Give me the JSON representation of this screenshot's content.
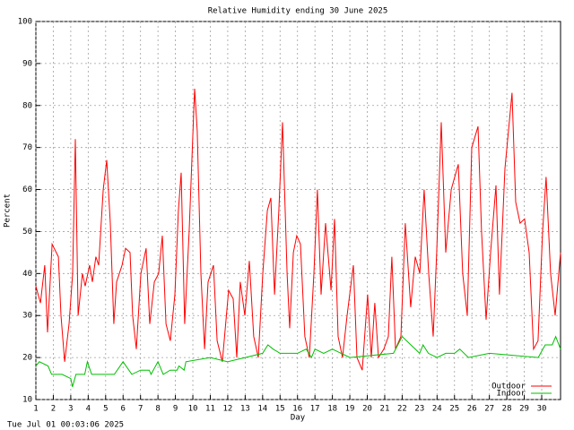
{
  "chart_data": {
    "type": "line",
    "title": "Relative Humidity ending 30 June 2025",
    "xlabel": "Day",
    "ylabel": "Percent",
    "footer": "Tue Jul 01 00:03:06 2025",
    "xlim": [
      1,
      31.08
    ],
    "ylim": [
      10,
      100
    ],
    "xticks": [
      1,
      2,
      3,
      4,
      5,
      6,
      7,
      8,
      9,
      10,
      11,
      12,
      13,
      14,
      15,
      16,
      17,
      18,
      19,
      20,
      21,
      22,
      23,
      24,
      25,
      26,
      27,
      28,
      29,
      30
    ],
    "yticks": [
      10,
      20,
      30,
      40,
      50,
      60,
      70,
      80,
      90,
      100
    ],
    "grid": true,
    "legend": "lower right",
    "series": [
      {
        "name": "Outdoor",
        "color": "#ff0000",
        "x": [
          1.0,
          1.26,
          1.51,
          1.67,
          1.93,
          2.29,
          2.44,
          2.65,
          2.9,
          3.11,
          3.26,
          3.42,
          3.67,
          3.83,
          4.08,
          4.24,
          4.44,
          4.6,
          4.86,
          5.06,
          5.27,
          5.47,
          5.63,
          5.94,
          6.14,
          6.4,
          6.55,
          6.76,
          7.02,
          7.32,
          7.53,
          7.79,
          8.04,
          8.25,
          8.46,
          8.71,
          8.97,
          9.17,
          9.33,
          9.53,
          9.79,
          10.1,
          10.25,
          10.46,
          10.67,
          10.87,
          11.18,
          11.39,
          11.69,
          12.05,
          12.31,
          12.52,
          12.72,
          12.98,
          13.24,
          13.49,
          13.75,
          14.01,
          14.27,
          14.47,
          14.68,
          14.93,
          15.14,
          15.4,
          15.55,
          15.76,
          15.96,
          16.17,
          16.42,
          16.68,
          16.94,
          17.14,
          17.35,
          17.61,
          17.92,
          18.12,
          18.33,
          18.58,
          18.84,
          19.2,
          19.41,
          19.71,
          20.02,
          20.23,
          20.43,
          20.64,
          20.95,
          21.21,
          21.41,
          21.62,
          21.93,
          22.18,
          22.49,
          22.75,
          23.01,
          23.26,
          23.52,
          23.78,
          23.98,
          24.24,
          24.5,
          24.81,
          25.22,
          25.47,
          25.73,
          25.99,
          26.35,
          26.55,
          26.81,
          27.07,
          27.38,
          27.58,
          27.89,
          28.3,
          28.51,
          28.76,
          29.02,
          29.28,
          29.53,
          29.79,
          30.05,
          30.25,
          30.51,
          30.77,
          31.08
        ],
        "values": [
          37,
          33,
          42,
          26,
          47,
          44,
          30,
          19,
          28,
          40,
          72,
          30,
          40,
          37,
          42,
          38,
          44,
          42,
          60,
          67,
          52,
          28,
          38,
          42,
          46,
          45,
          30,
          22,
          40,
          46,
          28,
          38,
          40,
          49,
          28,
          24,
          35,
          55,
          64,
          28,
          50,
          84,
          74,
          40,
          22,
          38,
          42,
          24,
          19,
          36,
          34,
          20,
          38,
          30,
          43,
          25,
          20,
          40,
          55,
          58,
          35,
          55,
          76,
          40,
          27,
          45,
          49,
          47,
          25,
          20,
          40,
          60,
          35,
          52,
          36,
          53,
          25,
          20,
          30,
          42,
          20,
          17,
          35,
          20,
          33,
          20,
          22,
          25,
          44,
          22,
          25,
          52,
          32,
          44,
          40,
          60,
          40,
          25,
          45,
          76,
          45,
          60,
          66,
          40,
          30,
          70,
          75,
          50,
          29,
          45,
          61,
          35,
          65,
          83,
          57,
          52,
          53,
          45,
          22,
          24,
          50,
          63,
          40,
          30,
          45
        ]
      },
      {
        "name": "Indoor",
        "color": "#00c000",
        "x": [
          1.0,
          1.2,
          1.7,
          1.9,
          2.5,
          3.0,
          3.1,
          3.3,
          3.8,
          3.95,
          4.2,
          5.5,
          6.0,
          6.5,
          7.0,
          7.5,
          7.6,
          8.0,
          8.3,
          8.7,
          9.1,
          9.2,
          9.5,
          9.6,
          11.0,
          12.0,
          13.0,
          14.0,
          14.3,
          14.6,
          15.0,
          16.0,
          16.5,
          16.8,
          17.0,
          17.5,
          18.0,
          18.5,
          19.0,
          21.5,
          22.0,
          22.5,
          23.0,
          23.2,
          23.5,
          24.0,
          24.5,
          25.0,
          25.3,
          25.8,
          27.0,
          29.8,
          30.2,
          30.6,
          30.8,
          31.08
        ],
        "values": [
          18,
          19,
          18,
          16,
          16,
          15,
          13,
          16,
          16,
          19,
          16,
          16,
          19,
          16,
          17,
          17,
          16,
          19,
          16,
          17,
          17,
          18,
          17,
          19,
          20,
          19,
          20,
          21,
          23,
          22,
          21,
          21,
          22,
          20,
          22,
          21,
          22,
          21,
          20,
          21,
          25,
          23,
          21,
          23,
          21,
          20,
          21,
          21,
          22,
          20,
          21,
          20,
          23,
          23,
          25,
          22
        ]
      }
    ]
  }
}
